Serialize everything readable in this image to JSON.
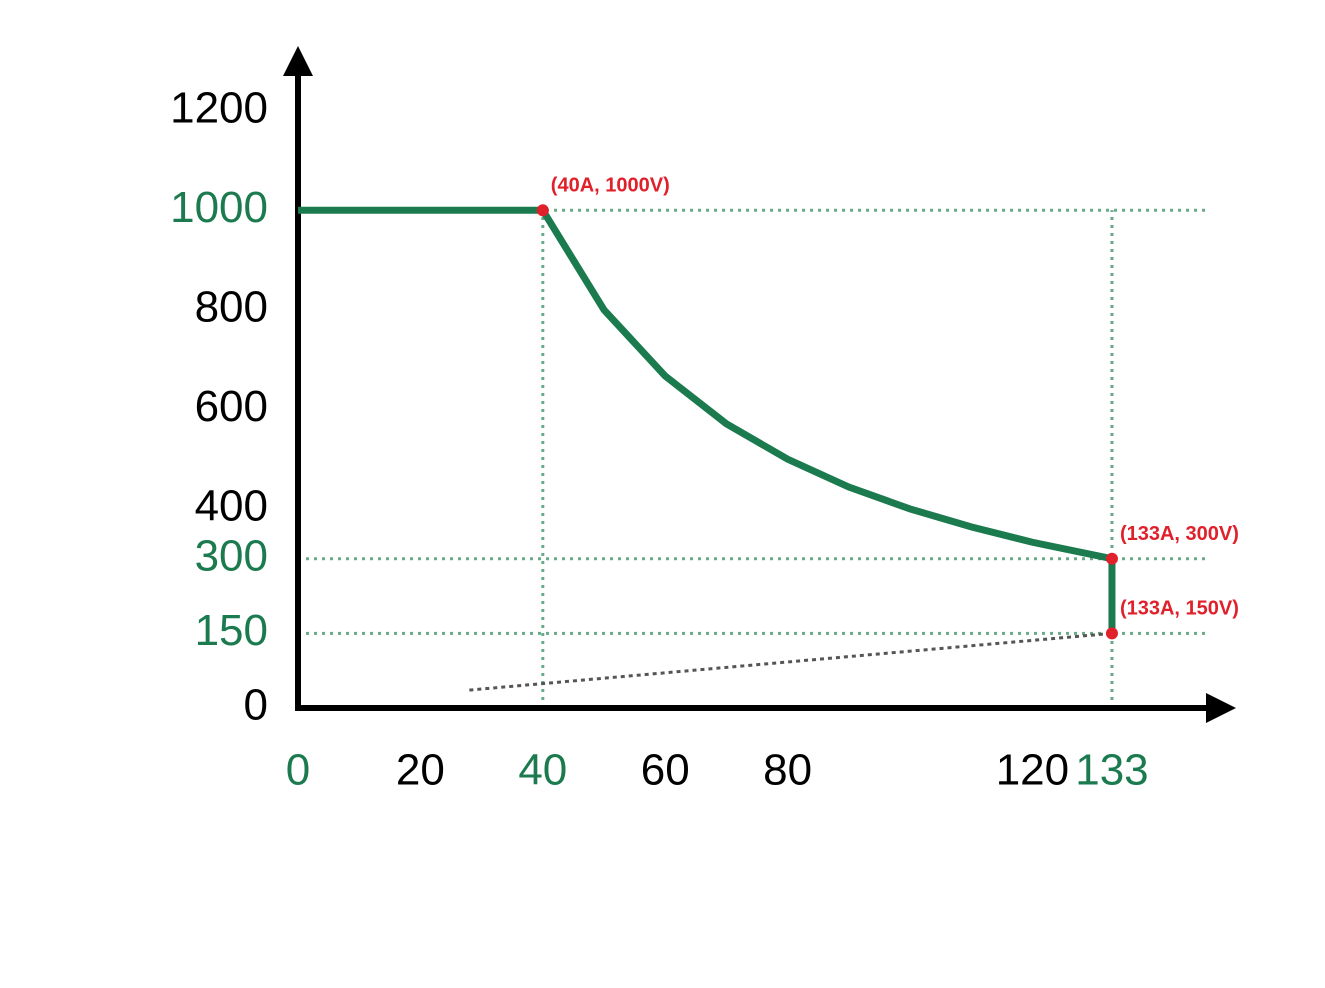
{
  "chart_data": {
    "type": "line",
    "x": [
      0,
      40,
      50,
      60,
      70,
      80,
      90,
      100,
      110,
      120,
      133,
      133
    ],
    "series": [
      {
        "color": "#1b7a4e",
        "style": "solid",
        "x": [
          0,
          40,
          50,
          60,
          70,
          80,
          90,
          100,
          110,
          120,
          133,
          133
        ],
        "values": [
          1000,
          1000,
          800,
          667,
          571,
          500,
          444,
          400,
          364,
          333,
          300,
          150
        ]
      },
      {
        "color": "#555555",
        "style": "dashed",
        "x": [
          28,
          133
        ],
        "values": [
          36,
          150
        ]
      }
    ],
    "xlim": [
      0,
      150
    ],
    "ylim": [
      0,
      1300
    ],
    "xticks": [
      0,
      20,
      40,
      60,
      80,
      120,
      133
    ],
    "xtick_colors": [
      "#1b7a4e",
      "#000000",
      "#1b7a4e",
      "#000000",
      "#000000",
      "#000000",
      "#1b7a4e"
    ],
    "yticks": [
      0,
      150,
      300,
      400,
      600,
      800,
      1000,
      1200
    ],
    "ytick_colors": [
      "#000000",
      "#1b7a4e",
      "#1b7a4e",
      "#000000",
      "#000000",
      "#000000",
      "#1b7a4e",
      "#000000"
    ],
    "annotations": [
      {
        "text": "(40A, 1000V)",
        "x": 40,
        "y": 1000
      },
      {
        "text": "(133A, 300V)",
        "x": 133,
        "y": 300
      },
      {
        "text": "(133A, 150V)",
        "x": 133,
        "y": 150
      }
    ],
    "annotation_color": "#e0202a",
    "reference_line_color": "#6aaa88"
  }
}
